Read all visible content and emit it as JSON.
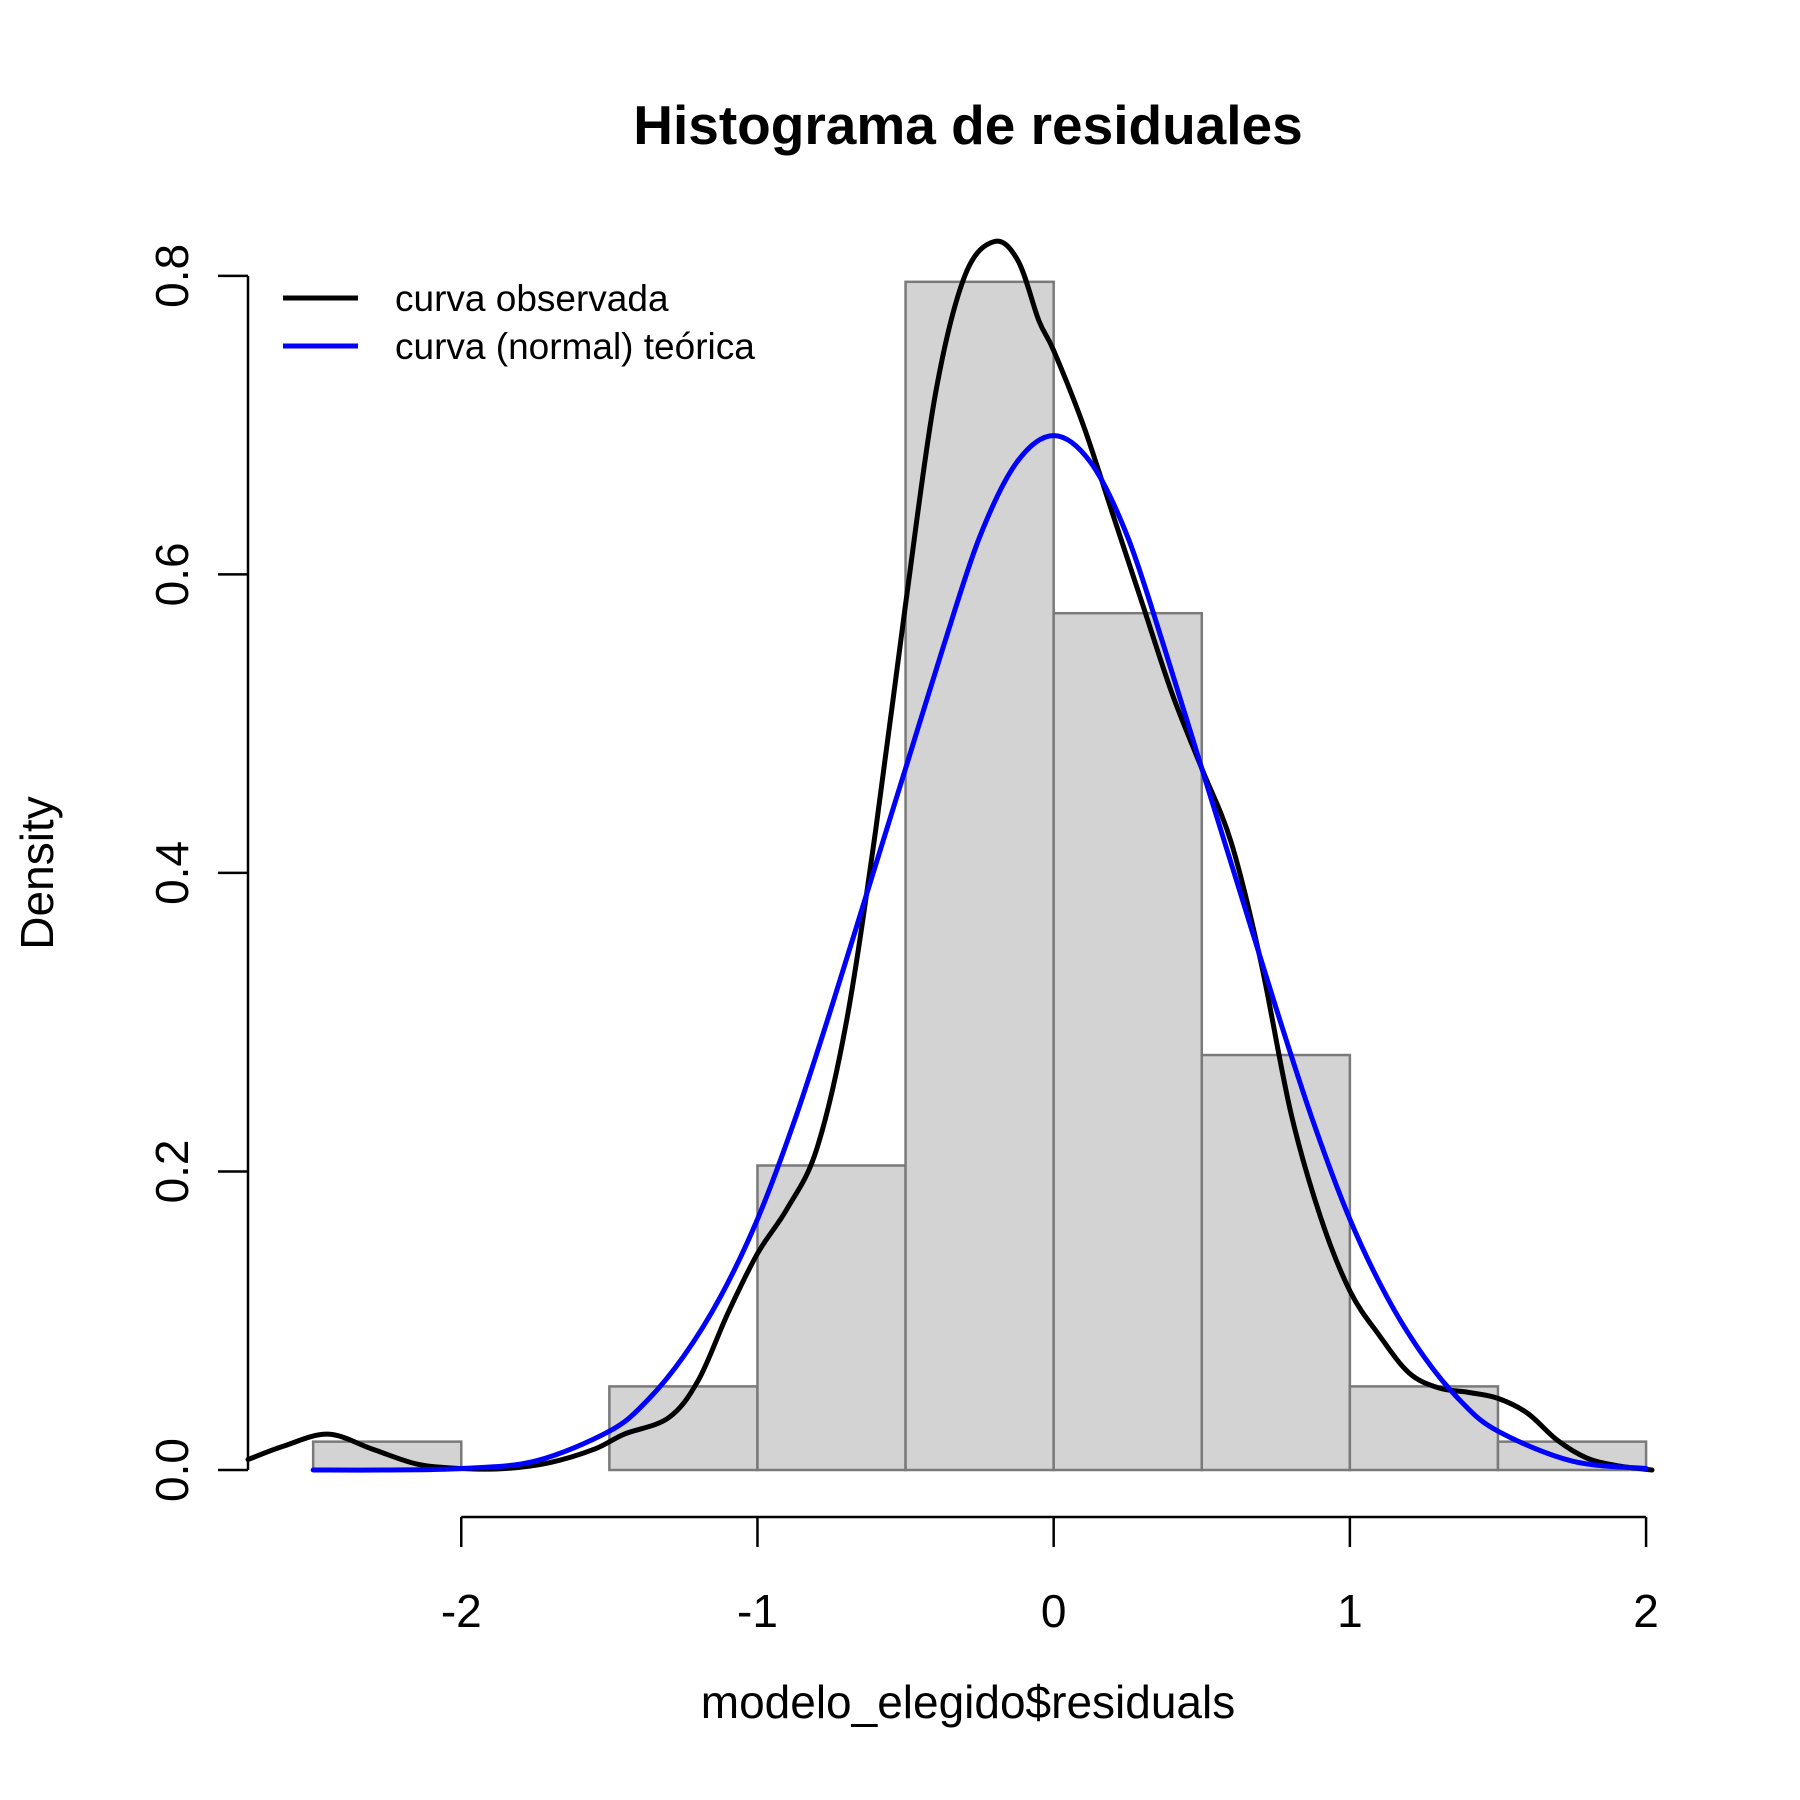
{
  "chart_data": {
    "type": "bar",
    "title": "Histograma de residuales",
    "xlabel": "modelo_elegido$residuals",
    "ylabel": "Density",
    "xlim": [
      -2.72,
      2.02
    ],
    "ylim": [
      0,
      0.82
    ],
    "x_ticks": [
      -2,
      -1,
      0,
      1,
      2
    ],
    "x_tick_labels": [
      "-2",
      "-1",
      "0",
      "1",
      "2"
    ],
    "y_ticks": [
      0,
      0.2,
      0.4,
      0.6,
      0.8
    ],
    "y_tick_labels": [
      "0.0",
      "0.2",
      "0.4",
      "0.6",
      "0.8"
    ],
    "grid": false,
    "histogram": {
      "bin_edges": [
        -2.5,
        -2.0,
        -1.5,
        -1.0,
        -0.5,
        0.0,
        0.5,
        1.0,
        1.5,
        2.0
      ],
      "densities": [
        0.019,
        0.0,
        0.056,
        0.204,
        0.796,
        0.574,
        0.278,
        0.056,
        0.019
      ],
      "fill_color": "#d3d3d3",
      "border_color": "#7a7a7a"
    },
    "series": [
      {
        "name": "curva observada",
        "type": "line",
        "color": "#000000",
        "x": [
          -2.72,
          -2.6,
          -2.45,
          -2.3,
          -2.15,
          -2.0,
          -1.85,
          -1.7,
          -1.55,
          -1.45,
          -1.3,
          -1.2,
          -1.1,
          -1.0,
          -0.9,
          -0.8,
          -0.7,
          -0.6,
          -0.5,
          -0.4,
          -0.3,
          -0.2,
          -0.12,
          -0.05,
          0.0,
          0.1,
          0.2,
          0.3,
          0.4,
          0.5,
          0.6,
          0.7,
          0.8,
          0.9,
          1.0,
          1.1,
          1.2,
          1.3,
          1.4,
          1.5,
          1.6,
          1.7,
          1.8,
          1.9,
          2.02
        ],
        "y": [
          0.007,
          0.016,
          0.024,
          0.014,
          0.004,
          0.001,
          0.001,
          0.005,
          0.014,
          0.024,
          0.035,
          0.06,
          0.105,
          0.145,
          0.175,
          0.215,
          0.3,
          0.43,
          0.58,
          0.72,
          0.8,
          0.823,
          0.81,
          0.77,
          0.75,
          0.7,
          0.64,
          0.58,
          0.52,
          0.47,
          0.42,
          0.34,
          0.24,
          0.17,
          0.12,
          0.09,
          0.065,
          0.055,
          0.052,
          0.048,
          0.038,
          0.02,
          0.008,
          0.003,
          0.0
        ]
      },
      {
        "name": "curva (normal) teórica",
        "type": "line",
        "color": "#0000ff",
        "x": [
          -2.5,
          -2.25,
          -2.0,
          -1.75,
          -1.5,
          -1.375,
          -1.25,
          -1.125,
          -1.0,
          -0.875,
          -0.75,
          -0.625,
          -0.5,
          -0.375,
          -0.25,
          -0.125,
          0.0,
          0.125,
          0.25,
          0.375,
          0.5,
          0.625,
          0.75,
          0.875,
          1.0,
          1.125,
          1.25,
          1.375,
          1.5,
          1.75,
          2.0
        ],
        "y": [
          0.0,
          0.0,
          0.001,
          0.006,
          0.026,
          0.046,
          0.076,
          0.116,
          0.168,
          0.234,
          0.31,
          0.39,
          0.47,
          0.55,
          0.625,
          0.675,
          0.693,
          0.675,
          0.625,
          0.55,
          0.47,
          0.39,
          0.31,
          0.234,
          0.168,
          0.116,
          0.076,
          0.046,
          0.026,
          0.006,
          0.001
        ]
      }
    ],
    "legend": {
      "position": "top-left",
      "entries": [
        "curva observada",
        "curva (normal) teórica"
      ]
    }
  }
}
